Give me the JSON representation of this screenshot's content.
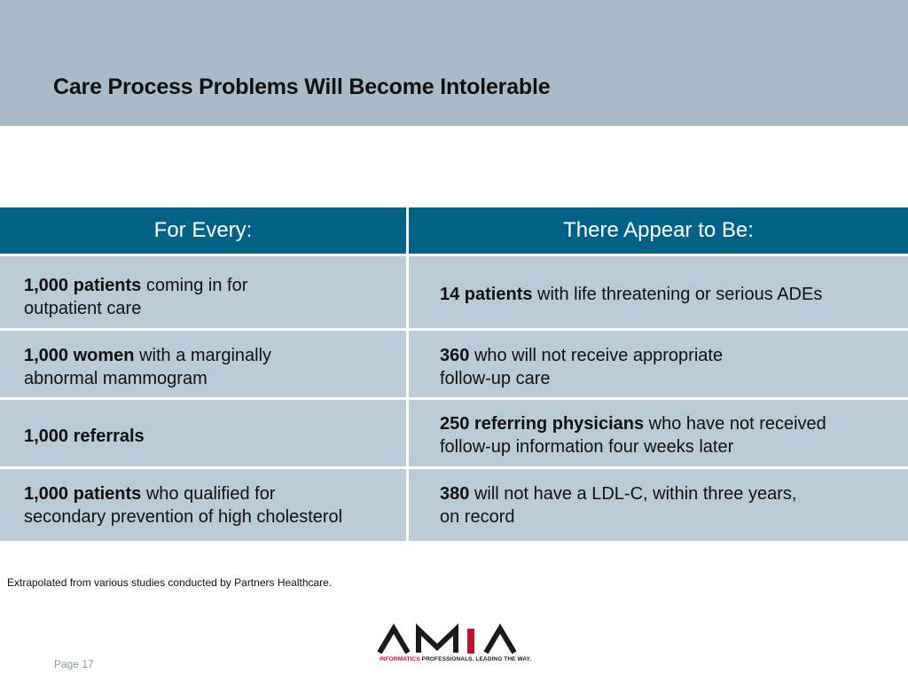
{
  "slide": {
    "title": "Care Process Problems Will Become Intolerable",
    "source_note": "Extrapolated from various studies conducted by Partners Healthcare.",
    "page_label": "Page 17"
  },
  "table": {
    "headers": [
      "For Every:",
      "There Appear to Be:"
    ],
    "rows": [
      {
        "left": {
          "bold": "1,000 patients",
          "rest_line1": "coming in for",
          "line2": "outpatient care"
        },
        "right": {
          "bold": "14 patients",
          "rest_line1": "with life threatening or serious ADEs",
          "line2": ""
        }
      },
      {
        "left": {
          "bold": "1,000 women",
          "rest_line1": "with a marginally",
          "line2": "abnormal mammogram"
        },
        "right": {
          "bold": "360",
          "rest_line1": "who will not receive appropriate",
          "line2": "follow-up care"
        }
      },
      {
        "left": {
          "bold_a": "1,000",
          "bold_b": "referrals",
          "line2": ""
        },
        "right": {
          "bold": "250 referring physicians",
          "rest_line1": "who have not received",
          "line2": "follow-up information four weeks later"
        }
      },
      {
        "left": {
          "bold": "1,000 patients",
          "rest_line1": "who qualified for",
          "line2": "secondary prevention of high cholesterol"
        },
        "right": {
          "bold": "380",
          "rest_line1": "will not have a LDL-C, within three years,",
          "line2": "on record"
        }
      }
    ]
  },
  "logo": {
    "wordmark": "AMIA",
    "tagline_red": "INFORMATICS",
    "tagline_dark": "PROFESSIONALS. LEADING THE WAY.",
    "colors": {
      "dark": "#1a1a1a",
      "red": "#c8102e"
    }
  },
  "colors": {
    "header_band": "#a9bbc8",
    "table_header": "#006286",
    "table_cell": "#b9cbd7",
    "page_number": "#7f97ad"
  }
}
